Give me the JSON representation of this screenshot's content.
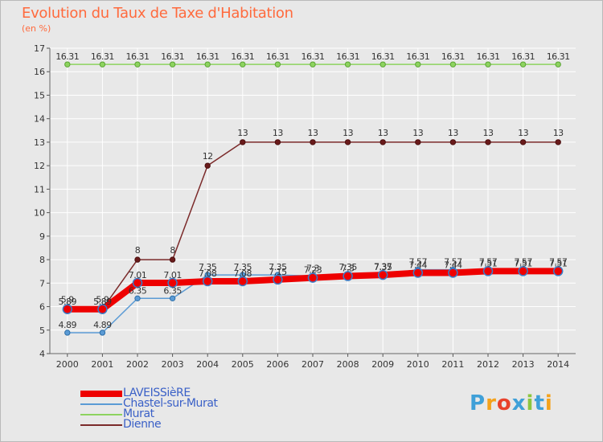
{
  "header": {
    "title": "Evolution du Taux de Taxe d'Habitation",
    "subtitle": "(en %)"
  },
  "brand": {
    "text": "Proxiti",
    "colors": [
      "#3fa0d8",
      "#f4a21b",
      "#e8412b",
      "#3fa0d8",
      "#8cc63f",
      "#3fa0d8",
      "#f4a21b"
    ]
  },
  "chart_data": {
    "type": "line",
    "title": "Evolution du Taux de Taxe d'Habitation",
    "subtitle": "(en %)",
    "xlabel": "",
    "ylabel": "(en %)",
    "x": [
      "2000",
      "2001",
      "2002",
      "2003",
      "2004",
      "2005",
      "2006",
      "2007",
      "2008",
      "2009",
      "2010",
      "2011",
      "2012",
      "2013",
      "2014"
    ],
    "ylim": [
      4,
      17
    ],
    "yticks": [
      "4",
      "5",
      "6",
      "7",
      "8",
      "9",
      "10",
      "11",
      "12",
      "13",
      "14",
      "15",
      "16",
      "17"
    ],
    "grid": true,
    "legend_position": "bottom-left",
    "series": [
      {
        "name": "LAVEISSièRE",
        "color": "#ee0000",
        "values": [
          5.89,
          5.89,
          7.01,
          7.01,
          7.08,
          7.08,
          7.15,
          7.23,
          7.3,
          7.35,
          7.44,
          7.44,
          7.51,
          7.51,
          7.51
        ],
        "labels": [
          "5.89",
          "5.89",
          "7.01",
          "7.01",
          "7.08",
          "7.08",
          "7.15",
          "7.23",
          "7.3",
          "7.35",
          "7.44",
          "7.44",
          "7.51",
          "7.51",
          "7.51"
        ]
      },
      {
        "name": "Chastel-sur-Murat",
        "color": "#5b9bd5",
        "values": [
          4.89,
          4.89,
          6.35,
          6.35,
          7.35,
          7.35,
          7.35,
          7.3,
          7.35,
          7.37,
          7.57,
          7.57,
          7.57,
          7.57,
          7.57
        ],
        "labels": [
          "4.89",
          "4.89",
          "6.35",
          "6.35",
          "7.35",
          "7.35",
          "7.35",
          "7.3",
          "7.35",
          "7.37",
          "7.57",
          "7.57",
          "7.57",
          "7.57",
          "7.57"
        ]
      },
      {
        "name": "Murat",
        "color": "#8dd35f",
        "values": [
          16.31,
          16.31,
          16.31,
          16.31,
          16.31,
          16.31,
          16.31,
          16.31,
          16.31,
          16.31,
          16.31,
          16.31,
          16.31,
          16.31,
          16.31
        ],
        "labels": [
          "16.31",
          "16.31",
          "16.31",
          "16.31",
          "16.31",
          "16.31",
          "16.31",
          "16.31",
          "16.31",
          "16.31",
          "16.31",
          "16.31",
          "16.31",
          "16.31",
          "16.31"
        ]
      },
      {
        "name": "Dienne",
        "color": "#7b2a2a",
        "values": [
          5.9,
          5.9,
          8,
          8,
          12,
          13,
          13,
          13,
          13,
          13,
          13,
          13,
          13,
          13,
          13
        ],
        "labels": [
          "5.9",
          "5.9",
          "8",
          "8",
          "12",
          "13",
          "13",
          "13",
          "13",
          "13",
          "13",
          "13",
          "13",
          "13",
          "13"
        ]
      }
    ]
  }
}
